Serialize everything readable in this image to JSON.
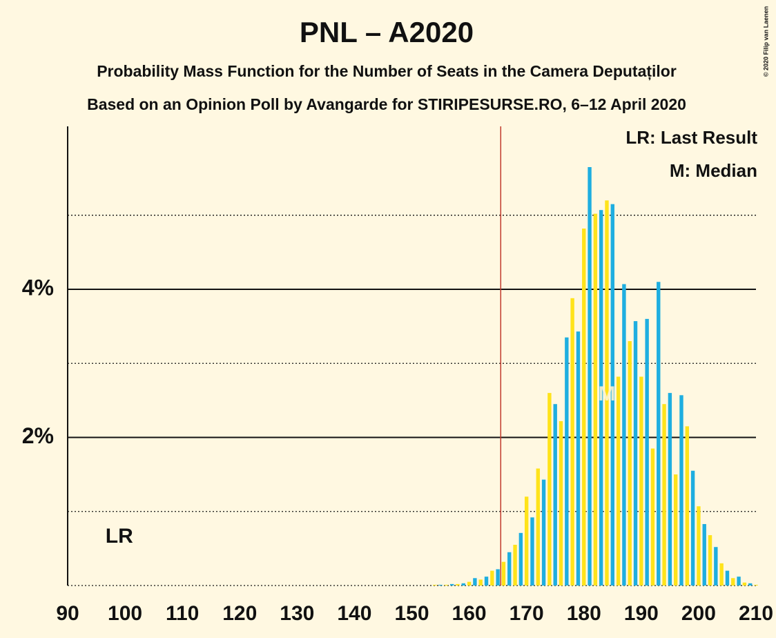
{
  "chart_data": {
    "type": "bar",
    "title": "PNL – A2020",
    "subtitle": "Probability Mass Function for the Number of Seats in the Camera Deputaților",
    "subtitle2": "Based on an Opinion Poll by Avangarde for STIRIPESURSE.RO, 6–12 April 2020",
    "copyright": "© 2020 Filip van Laenen",
    "legend": [
      "LR: Last Result",
      "M: Median"
    ],
    "x": [
      90,
      91,
      92,
      93,
      94,
      95,
      96,
      97,
      98,
      99,
      100,
      101,
      102,
      103,
      104,
      105,
      106,
      107,
      108,
      109,
      110,
      111,
      112,
      113,
      114,
      115,
      116,
      117,
      118,
      119,
      120,
      121,
      122,
      123,
      124,
      125,
      126,
      127,
      128,
      129,
      130,
      131,
      132,
      133,
      134,
      135,
      136,
      137,
      138,
      139,
      140,
      141,
      142,
      143,
      144,
      145,
      146,
      147,
      148,
      149,
      150,
      151,
      152,
      153,
      154,
      155,
      156,
      157,
      158,
      159,
      160,
      161,
      162,
      163,
      164,
      165,
      166,
      167,
      168,
      169,
      170,
      171,
      172,
      173,
      174,
      175,
      176,
      177,
      178,
      179,
      180,
      181,
      182,
      183,
      184,
      185,
      186,
      187,
      188,
      189,
      190,
      191,
      192,
      193,
      194,
      195,
      196,
      197,
      198,
      199,
      200,
      201,
      202,
      203,
      204,
      205,
      206,
      207,
      208,
      209,
      210
    ],
    "values": [
      0,
      0,
      0,
      0,
      0,
      0,
      0,
      0,
      0,
      0,
      0,
      0,
      0,
      0,
      0,
      0,
      0,
      0,
      0,
      0,
      0,
      0,
      0,
      0,
      0,
      0,
      0,
      0,
      0,
      0,
      0,
      0,
      0,
      0,
      0,
      0,
      0,
      0,
      0,
      0,
      0,
      0,
      0,
      0,
      0,
      0,
      0,
      0,
      0,
      0,
      0,
      0,
      0,
      0,
      0,
      0,
      0,
      0,
      0,
      0,
      0,
      0,
      0,
      0,
      0.01,
      0.01,
      0.01,
      0.02,
      0.02,
      0.03,
      0.05,
      0.1,
      0.08,
      0.12,
      0.2,
      0.22,
      0.32,
      0.45,
      0.55,
      0.71,
      1.2,
      0.92,
      1.58,
      1.43,
      2.6,
      2.45,
      2.22,
      3.35,
      3.88,
      3.43,
      4.82,
      5.65,
      5.02,
      5.07,
      5.2,
      5.15,
      2.82,
      4.07,
      3.3,
      3.57,
      2.82,
      3.6,
      1.85,
      4.1,
      2.45,
      2.6,
      1.5,
      2.57,
      2.15,
      1.55,
      1.07,
      0.83,
      0.68,
      0.52,
      0.3,
      0.2,
      0.1,
      0.12,
      0.04,
      0.03,
      0.01
    ],
    "colors": [
      "#ffe31a",
      "#1eaee0"
    ],
    "xlim": [
      90,
      210
    ],
    "xticks": [
      90,
      100,
      110,
      120,
      130,
      140,
      150,
      160,
      170,
      180,
      190,
      200,
      210
    ],
    "ylim": [
      0,
      6.2
    ],
    "yticks": [
      {
        "value": 2,
        "label": "2%"
      },
      {
        "value": 4,
        "label": "4%"
      }
    ],
    "minor_yticks": [
      0,
      1,
      3,
      5
    ],
    "majority": 166,
    "last_result": 99,
    "last_result_label": "LR",
    "median": 184,
    "median_label": "M"
  }
}
